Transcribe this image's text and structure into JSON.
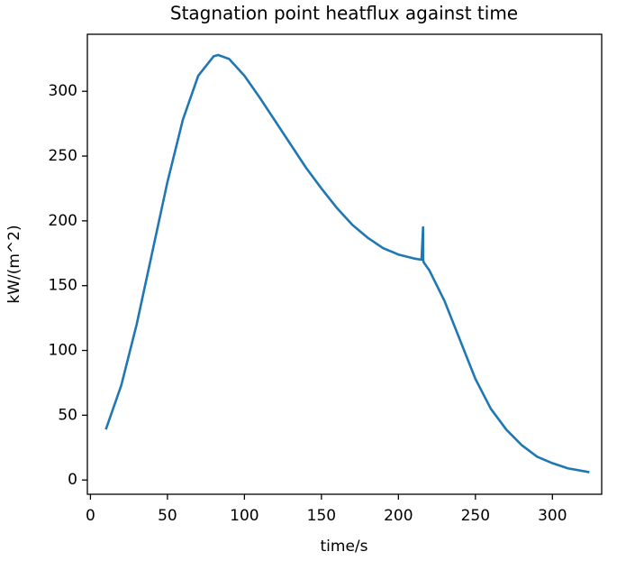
{
  "chart_data": {
    "type": "line",
    "title": "Stagnation point heatflux against time",
    "xlabel": "time/s",
    "ylabel": "kW/(m^2)",
    "x": [
      10,
      20,
      30,
      40,
      50,
      60,
      70,
      80,
      83,
      90,
      100,
      110,
      120,
      130,
      140,
      150,
      160,
      170,
      180,
      190,
      200,
      210,
      215,
      216,
      216.1,
      216.4,
      220,
      230,
      240,
      250,
      260,
      270,
      280,
      290,
      300,
      310,
      324
    ],
    "series": [
      {
        "name": "heatflux",
        "color": "#1f77b4",
        "values": [
          39,
          73,
          120,
          175,
          230,
          278,
          312,
          327,
          328,
          325,
          312,
          295,
          277,
          259,
          241,
          225,
          210,
          197,
          187,
          179,
          174,
          171,
          170,
          195,
          170,
          168,
          162,
          138,
          108,
          78,
          55,
          39,
          27,
          18,
          13,
          9,
          6
        ]
      }
    ],
    "xlim": [
      -2,
      332
    ],
    "ylim": [
      -11,
      344
    ],
    "xticks": [
      0,
      50,
      100,
      150,
      200,
      250,
      300
    ],
    "yticks": [
      0,
      50,
      100,
      150,
      200,
      250,
      300
    ],
    "grid": false
  }
}
